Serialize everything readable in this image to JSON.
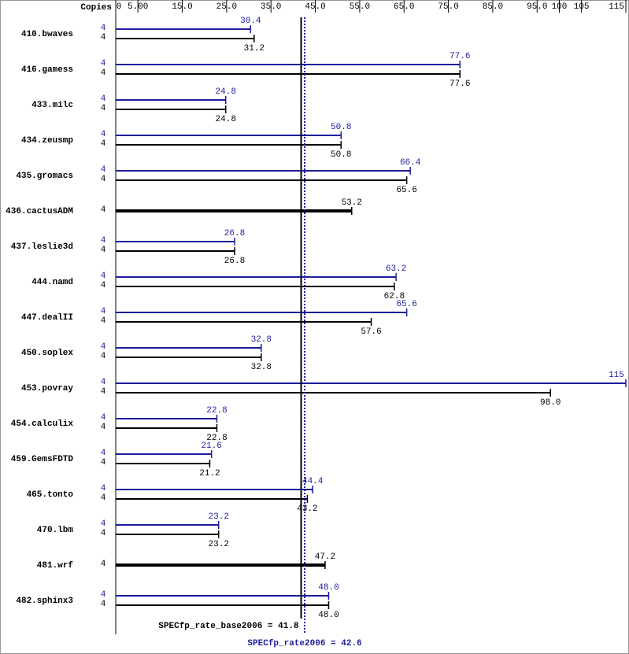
{
  "chart_data": {
    "type": "bar",
    "header": "Copies",
    "categories": [
      "410.bwaves",
      "416.gamess",
      "433.milc",
      "434.zeusmp",
      "435.gromacs",
      "436.cactusADM",
      "437.leslie3d",
      "444.namd",
      "447.dealII",
      "450.soplex",
      "453.povray",
      "454.calculix",
      "459.GemsFDTD",
      "465.tonto",
      "470.lbm",
      "481.wrf",
      "482.sphinx3"
    ],
    "xlim": [
      0,
      115
    ],
    "xticks": [
      0,
      {
        "value": 5,
        "label": "5.00"
      },
      {
        "value": 15,
        "label": "15.0"
      },
      {
        "value": 25,
        "label": "25.0"
      },
      {
        "value": 35,
        "label": "35.0"
      },
      {
        "value": 45,
        "label": "45.0"
      },
      {
        "value": 55,
        "label": "55.0"
      },
      {
        "value": 65,
        "label": "65.0"
      },
      {
        "value": 75,
        "label": "75.0"
      },
      {
        "value": 85,
        "label": "85.0"
      },
      {
        "value": 95,
        "label": "95.0"
      },
      100,
      105,
      115
    ],
    "series": [
      {
        "color": "#1c1c9c",
        "copies": [
          4,
          4,
          4,
          4,
          4,
          null,
          4,
          4,
          4,
          4,
          4,
          4,
          4,
          4,
          4,
          null,
          4
        ],
        "values": [
          30.4,
          77.6,
          24.8,
          50.8,
          66.4,
          null,
          26.8,
          63.2,
          65.6,
          32.8,
          115,
          22.8,
          21.6,
          44.4,
          23.2,
          null,
          48.0
        ],
        "value_labels": [
          "30.4",
          "77.6",
          "24.8",
          "50.8",
          "66.4",
          null,
          "26.8",
          "63.2",
          "65.6",
          "32.8",
          "115",
          "22.8",
          "21.6",
          "44.4",
          "23.2",
          null,
          "48.0"
        ]
      },
      {
        "color": "#000000",
        "copies": [
          4,
          4,
          4,
          4,
          4,
          4,
          4,
          4,
          4,
          4,
          4,
          4,
          4,
          4,
          4,
          4,
          4
        ],
        "values": [
          31.2,
          77.6,
          24.8,
          50.8,
          65.6,
          53.2,
          26.8,
          62.8,
          57.6,
          32.8,
          98.0,
          22.8,
          21.2,
          43.2,
          23.2,
          47.2,
          48.0
        ],
        "value_labels": [
          "31.2",
          "77.6",
          "24.8",
          "50.8",
          "65.6",
          "53.2",
          "26.8",
          "62.8",
          "57.6",
          "32.8",
          "98.0",
          "22.8",
          "21.2",
          "43.2",
          "23.2",
          "47.2",
          "48.0"
        ]
      }
    ],
    "reference_lines": [
      {
        "label": "SPECfp_rate_base2006 = 41.8",
        "value": 41.8,
        "color": "#000000",
        "dash": false
      },
      {
        "label": "SPECfp_rate2006 = 42.6",
        "value": 42.6,
        "color": "#1c1c9c",
        "dash": true
      }
    ]
  }
}
